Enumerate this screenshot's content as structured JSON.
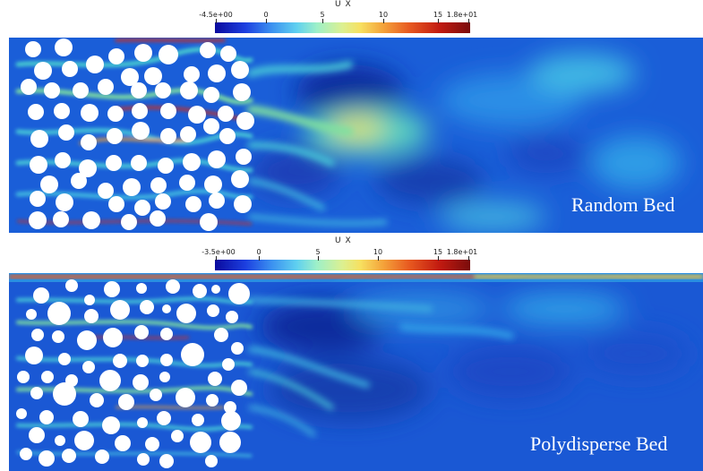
{
  "top": {
    "colorbar_title": "U X",
    "ticks": [
      "-4.5e+00",
      "0",
      "5",
      "10",
      "15",
      "1.8e+01"
    ],
    "label": "Random Bed"
  },
  "bottom": {
    "colorbar_title": "U X",
    "ticks": [
      "-3.5e+00",
      "0",
      "5",
      "10",
      "15",
      "1.8e+01"
    ],
    "label": "Polydisperse Bed"
  },
  "colors": {
    "background_field": "#1a56d6",
    "deep_blue": "#0f2a9c",
    "cyan": "#3fc6e6",
    "green": "#7fe0a0",
    "yellow": "#f0e060",
    "red": "#d22a16",
    "particle": "#ffffff"
  }
}
